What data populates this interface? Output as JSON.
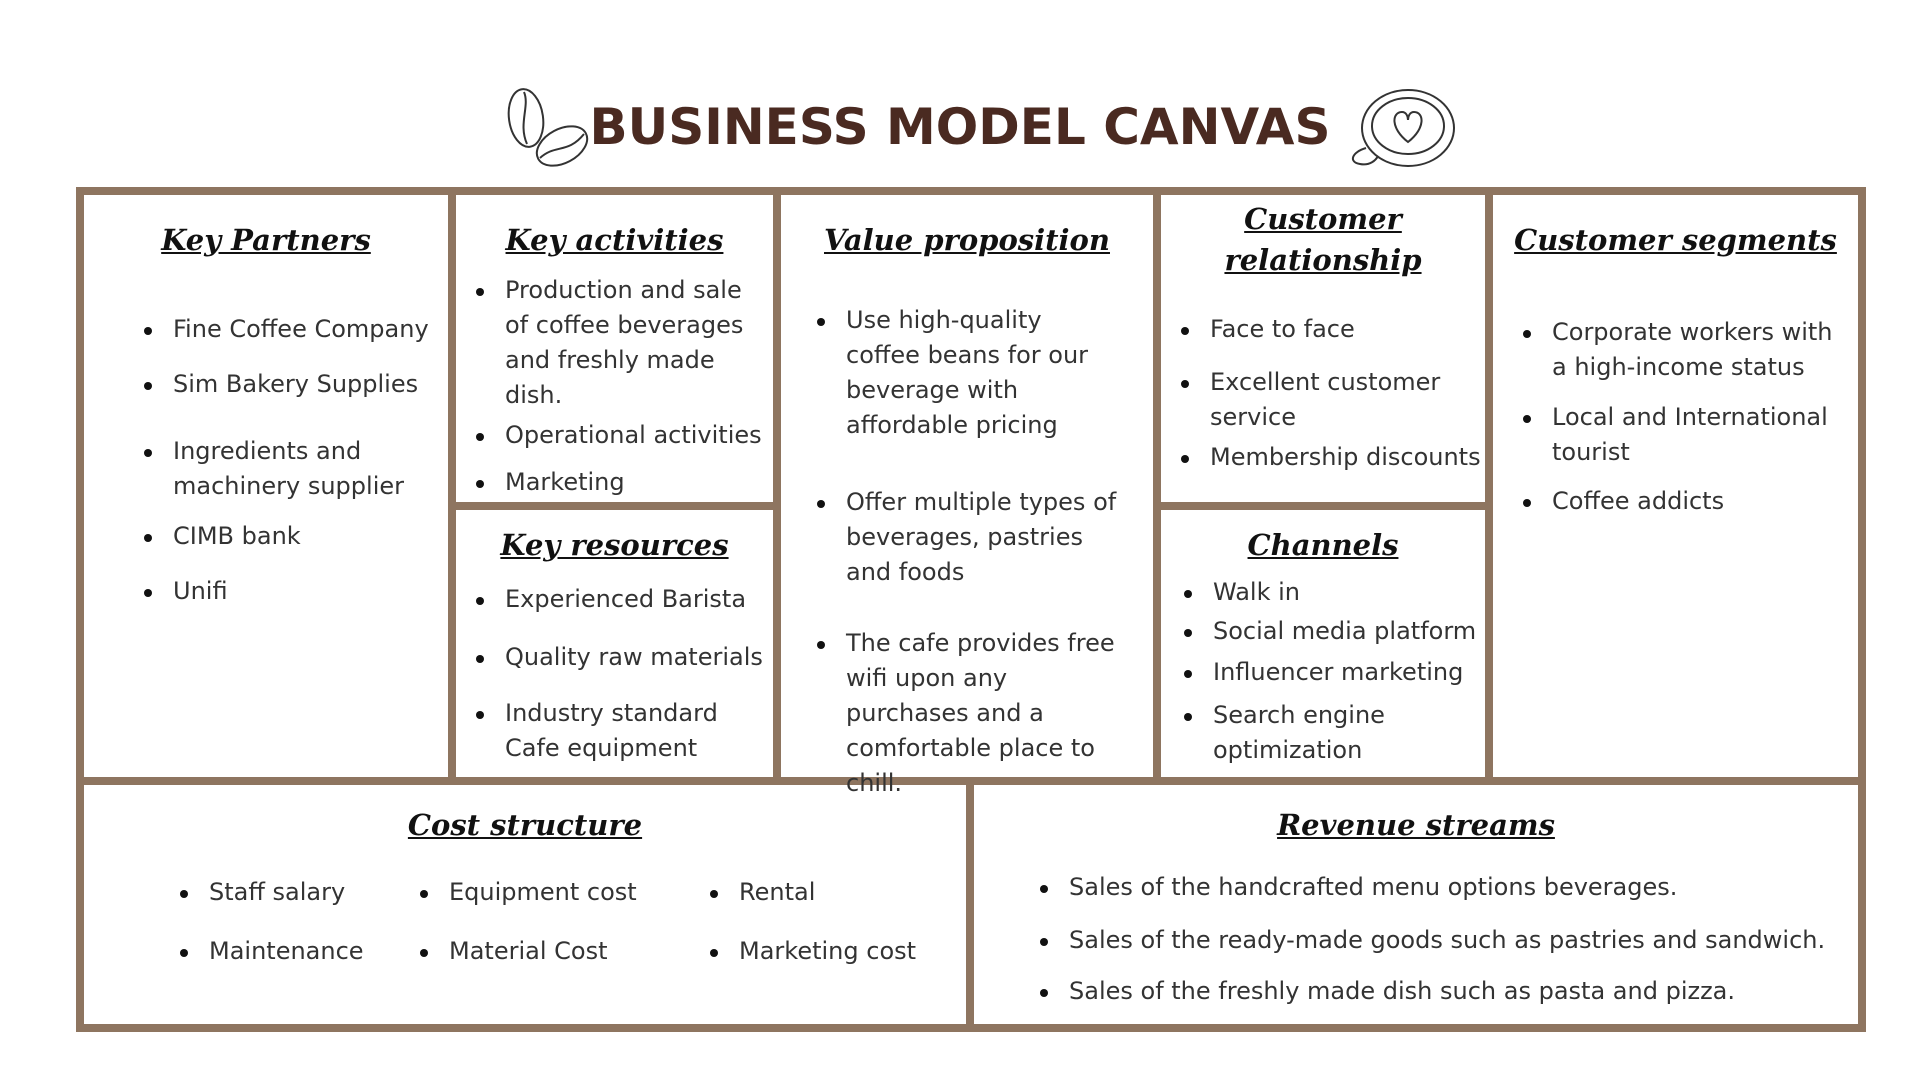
{
  "title": "BUSINESS MODEL CANVAS",
  "colors": {
    "frame": "#8e7560",
    "title": "#4a2a21",
    "text": "#333333"
  },
  "icons": {
    "left": "coffee-beans-icon",
    "right": "latte-cup-icon"
  },
  "key_partners": {
    "heading": "Key Partners",
    "items": [
      "Fine Coffee Company",
      "Sim Bakery Supplies",
      "Ingredients and machinery supplier",
      "CIMB bank",
      "Unifi"
    ]
  },
  "key_activities": {
    "heading": "Key activities",
    "items": [
      "Production and sale of coffee beverages and freshly made dish.",
      "Operational activities",
      "Marketing"
    ]
  },
  "key_resources": {
    "heading": "Key resources",
    "items": [
      "Experienced Barista",
      "Quality raw materials",
      "Industry standard Cafe equipment"
    ]
  },
  "value_proposition": {
    "heading": "Value proposition",
    "items": [
      "Use high-quality coffee beans for our beverage with affordable pricing",
      "Offer multiple types of beverages, pastries and foods",
      "The cafe provides free wifi upon any purchases and a comfortable place to chill."
    ]
  },
  "customer_relationship": {
    "heading_line1": "Customer",
    "heading_line2": "relationship",
    "items": [
      "Face to face",
      "Excellent customer service",
      "Membership discounts"
    ]
  },
  "channels": {
    "heading": "Channels",
    "items": [
      "Walk in",
      "Social media platform",
      "Influencer marketing",
      "Search engine optimization"
    ]
  },
  "customer_segments": {
    "heading": "Customer segments",
    "items": [
      "Corporate workers with a high-income status",
      "Local and International tourist",
      "Coffee addicts"
    ]
  },
  "cost_structure": {
    "heading": "Cost structure",
    "col1": [
      "Staff salary",
      "Maintenance"
    ],
    "col2": [
      "Equipment cost",
      "Material Cost"
    ],
    "col3": [
      "Rental",
      "Marketing cost"
    ]
  },
  "revenue_streams": {
    "heading": "Revenue streams",
    "items": [
      "Sales of the handcrafted menu options beverages.",
      "Sales of the ready-made goods such as pastries and sandwich.",
      "Sales of the freshly made dish such as pasta and pizza."
    ]
  }
}
